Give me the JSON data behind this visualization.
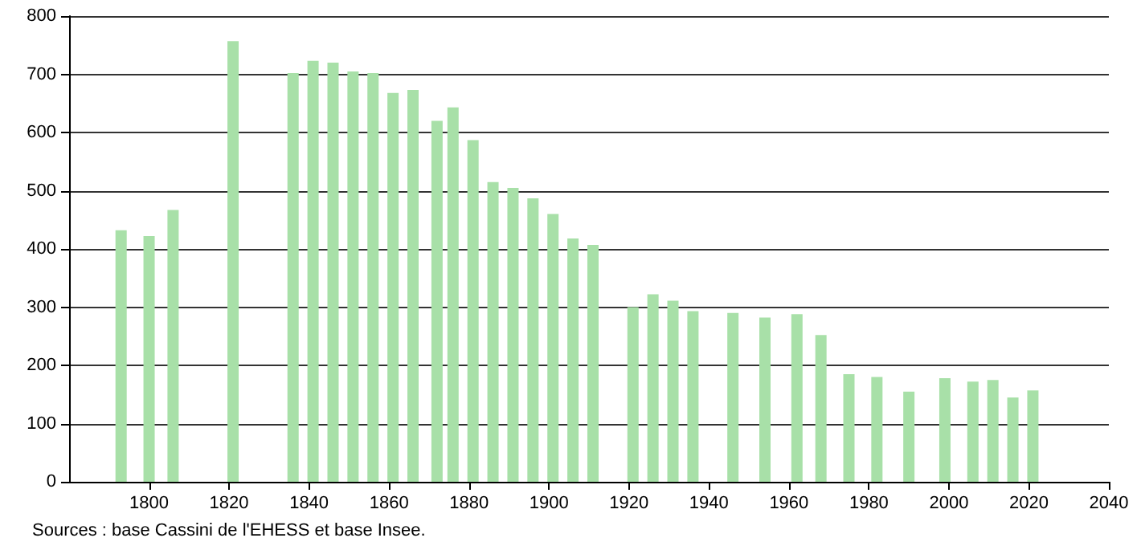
{
  "chart_data": {
    "type": "bar",
    "x": [
      1793,
      1800,
      1806,
      1821,
      1836,
      1841,
      1846,
      1851,
      1856,
      1861,
      1866,
      1872,
      1876,
      1881,
      1886,
      1891,
      1896,
      1901,
      1906,
      1911,
      1921,
      1926,
      1931,
      1936,
      1946,
      1954,
      1962,
      1968,
      1975,
      1982,
      1990,
      1999,
      2006,
      2011,
      2016,
      2021
    ],
    "values": [
      432,
      422,
      467,
      757,
      702,
      723,
      720,
      705,
      702,
      668,
      673,
      620,
      643,
      587,
      515,
      505,
      487,
      460,
      418,
      407,
      300,
      322,
      311,
      293,
      290,
      282,
      288,
      252,
      185,
      180,
      155,
      178,
      172,
      175,
      145,
      157
    ],
    "color": "#a8e0a8",
    "xlim": [
      1780,
      2040
    ],
    "xticks": [
      1800,
      1820,
      1840,
      1860,
      1880,
      1900,
      1920,
      1940,
      1960,
      1980,
      2000,
      2020,
      2040
    ],
    "ylim": [
      0,
      800
    ],
    "yticks": [
      0,
      100,
      200,
      300,
      400,
      500,
      600,
      700,
      800
    ],
    "grid": "y",
    "annotations": [
      "Sources : base Cassini de l'EHESS et base Insee."
    ]
  }
}
